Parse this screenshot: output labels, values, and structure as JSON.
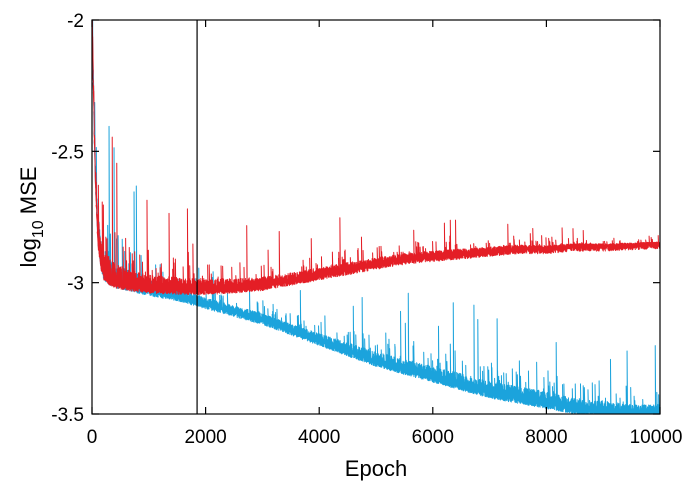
{
  "chart_data": {
    "type": "line",
    "title": "",
    "xlabel": "Epoch",
    "ylabel": {
      "prefix": "log",
      "subscript": "10",
      "suffix": " MSE"
    },
    "xlim": [
      0,
      10000
    ],
    "ylim": [
      -3.5,
      -2
    ],
    "x_ticks": [
      0,
      2000,
      4000,
      6000,
      8000,
      10000
    ],
    "x_tick_labels": [
      "0",
      "2000",
      "4000",
      "6000",
      "8000",
      "10000"
    ],
    "y_ticks": [
      -2,
      -2.5,
      -3,
      -3.5
    ],
    "y_tick_labels": [
      "-2",
      "-2.5",
      "-3",
      "-3.5"
    ],
    "grid": false,
    "legend": "none",
    "vertical_marker": {
      "x": 1850,
      "color": "#000000"
    },
    "series": [
      {
        "color": "#e41e26",
        "x": [
          0,
          50,
          100,
          150,
          200,
          300,
          400,
          600,
          800,
          1000,
          1500,
          2000,
          2500,
          3000,
          3500,
          4000,
          4500,
          5000,
          5500,
          6000,
          6500,
          7000,
          7500,
          8000,
          8500,
          9000,
          9500,
          10000
        ],
        "y": [
          -2.05,
          -2.6,
          -2.85,
          -2.93,
          -2.97,
          -2.99,
          -3.0,
          -3.01,
          -3.015,
          -3.02,
          -3.025,
          -3.025,
          -3.02,
          -3.01,
          -2.99,
          -2.97,
          -2.95,
          -2.93,
          -2.91,
          -2.9,
          -2.89,
          -2.88,
          -2.87,
          -2.87,
          -2.86,
          -2.86,
          -2.855,
          -2.85
        ],
        "noise_amp": [
          0.35,
          0.3,
          0.28,
          0.25,
          0.22,
          0.2,
          0.17,
          0.14,
          0.12,
          0.11,
          0.1,
          0.09,
          0.08,
          0.07,
          0.06,
          0.06,
          0.06,
          0.055,
          0.05,
          0.045,
          0.04,
          0.035,
          0.03,
          0.025,
          0.02,
          0.018,
          0.015,
          0.012
        ]
      },
      {
        "color": "#1ba3dc",
        "x": [
          0,
          50,
          100,
          150,
          200,
          300,
          400,
          600,
          800,
          1000,
          1500,
          2000,
          2500,
          3000,
          3500,
          4000,
          4500,
          5000,
          5500,
          6000,
          6500,
          7000,
          7500,
          8000,
          8500,
          9000,
          9500,
          10000
        ],
        "y": [
          -2.05,
          -2.6,
          -2.85,
          -2.93,
          -2.97,
          -2.99,
          -3.0,
          -3.01,
          -3.02,
          -3.03,
          -3.05,
          -3.08,
          -3.11,
          -3.14,
          -3.18,
          -3.22,
          -3.26,
          -3.3,
          -3.33,
          -3.36,
          -3.39,
          -3.42,
          -3.44,
          -3.46,
          -3.48,
          -3.49,
          -3.5,
          -3.5
        ],
        "noise_amp": [
          0.35,
          0.3,
          0.28,
          0.25,
          0.22,
          0.2,
          0.17,
          0.14,
          0.12,
          0.1,
          0.06,
          0.05,
          0.05,
          0.05,
          0.05,
          0.06,
          0.07,
          0.08,
          0.09,
          0.09,
          0.1,
          0.1,
          0.1,
          0.1,
          0.09,
          0.09,
          0.08,
          0.08
        ]
      }
    ]
  }
}
